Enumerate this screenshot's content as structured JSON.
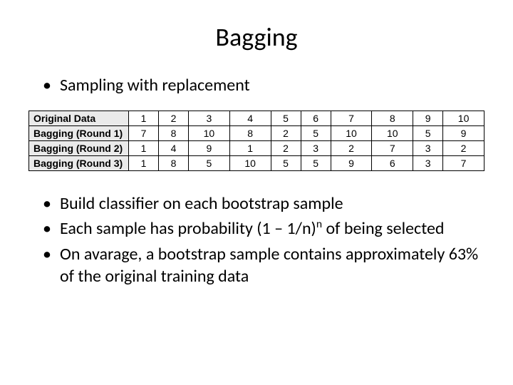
{
  "title": "Bagging",
  "bullets_top": [
    "Sampling with replacement"
  ],
  "table": {
    "rows": [
      {
        "label": "Original Data",
        "cells": [
          "1",
          "2",
          "3",
          "4",
          "5",
          "6",
          "7",
          "8",
          "9",
          "10"
        ]
      },
      {
        "label": "Bagging (Round 1)",
        "cells": [
          "7",
          "8",
          "10",
          "8",
          "2",
          "5",
          "10",
          "10",
          "5",
          "9"
        ]
      },
      {
        "label": "Bagging (Round 2)",
        "cells": [
          "1",
          "4",
          "9",
          "1",
          "2",
          "3",
          "2",
          "7",
          "3",
          "2"
        ]
      },
      {
        "label": "Bagging (Round 3)",
        "cells": [
          "1",
          "8",
          "5",
          "10",
          "5",
          "5",
          "9",
          "6",
          "3",
          "7"
        ]
      }
    ],
    "header_bg": "#eaeaea",
    "border_color": "#000000",
    "font_size": 14
  },
  "bullets_bottom": {
    "b1": "Build classifier on each bootstrap sample",
    "b2_pre": "Each sample has probability (1 – 1/n)",
    "b2_sup": "n",
    "b2_post": " of being selected",
    "b3": "On avarage, a bootstrap sample contains approximately 63% of the original training data"
  },
  "colors": {
    "background": "#ffffff",
    "text": "#000000"
  }
}
